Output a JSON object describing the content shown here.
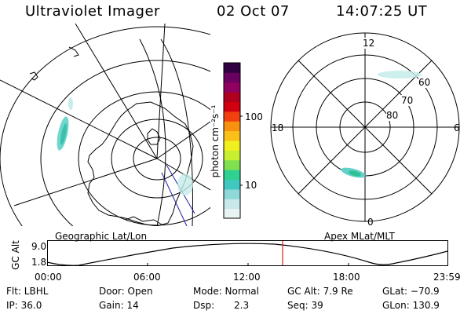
{
  "header": {
    "title": "Ultraviolet Imager",
    "date": "02 Oct 07",
    "time": "14:07:25 UT"
  },
  "colorbar": {
    "unit": "photon cm⁻²s⁻¹",
    "tick_100": "100",
    "tick_10": "10",
    "colors": [
      "#e8f4f4",
      "#c8e8ea",
      "#8fd8d8",
      "#40c8c0",
      "#30d090",
      "#80e050",
      "#c8f030",
      "#f0f020",
      "#f8c018",
      "#f89010",
      "#f04010",
      "#d00010",
      "#b00020",
      "#900060",
      "#6a0060",
      "#300040"
    ]
  },
  "left_panel": {
    "label": "Geographic Lat/Lon"
  },
  "right_panel": {
    "label": "Apex MLat/MLT",
    "mlt_labels": {
      "top": "12",
      "left": "18",
      "right": "6",
      "bottom": "0"
    },
    "lat_labels": {
      "l60": "60",
      "l70": "70",
      "l80": "80"
    }
  },
  "timeline": {
    "y_axis_label": "GC Alt",
    "y_ticks": {
      "max": "9.0",
      "min": "1.8"
    },
    "x_ticks": [
      "00:00",
      "06:00",
      "12:00",
      "18:00",
      "23:59"
    ],
    "marker_color": "#e02020"
  },
  "info": {
    "row1": {
      "filter": "Flt: LBHL",
      "door": "Door: Open",
      "mode": "Mode: Normal",
      "gc_alt": "GC Alt: 7.9 Re",
      "glat": "GLat: −70.9"
    },
    "row2": {
      "ip": "IP: 36.0",
      "gain": "Gain: 14",
      "dsp_label": "Dsp:",
      "dsp_value": "2.3",
      "seq": "Seq: 39",
      "glon": "GLon: 130.9"
    }
  }
}
